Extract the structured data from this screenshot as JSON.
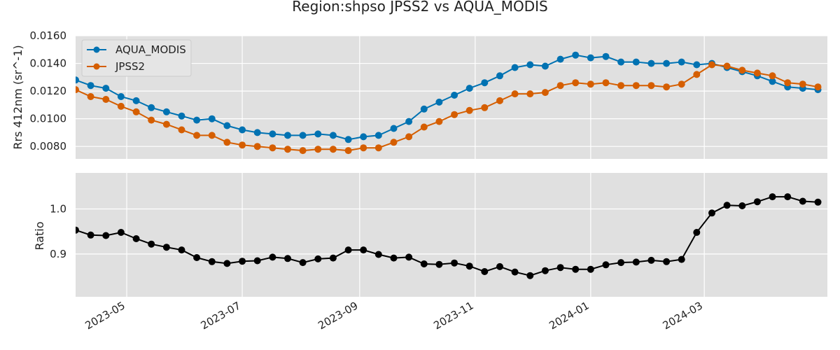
{
  "chart_data": [
    {
      "type": "line",
      "title": "Region:shpso JPSS2 vs AQUA_MODIS",
      "ylabel": "Rrs 412nm (sr^-1)",
      "xlabel": "",
      "xlim": [
        "2023-04-04",
        "2024-05-05"
      ],
      "ylim": [
        0.0071,
        0.016
      ],
      "y_ticks": [
        0.008,
        0.01,
        0.012,
        0.014,
        0.016
      ],
      "y_tick_labels": [
        "0.0080",
        "0.0100",
        "0.0120",
        "0.0140",
        "0.0160"
      ],
      "x": [
        "2023-04-04",
        "2023-04-12",
        "2023-04-20",
        "2023-04-28",
        "2023-05-06",
        "2023-05-14",
        "2023-05-22",
        "2023-05-30",
        "2023-06-07",
        "2023-06-15",
        "2023-06-23",
        "2023-07-01",
        "2023-07-09",
        "2023-07-17",
        "2023-07-25",
        "2023-08-02",
        "2023-08-10",
        "2023-08-18",
        "2023-08-26",
        "2023-09-03",
        "2023-09-11",
        "2023-09-19",
        "2023-09-27",
        "2023-10-05",
        "2023-10-13",
        "2023-10-21",
        "2023-10-29",
        "2023-11-06",
        "2023-11-14",
        "2023-11-22",
        "2023-11-30",
        "2023-12-08",
        "2023-12-16",
        "2023-12-24",
        "2024-01-01",
        "2024-01-09",
        "2024-01-17",
        "2024-01-25",
        "2024-02-02",
        "2024-02-10",
        "2024-02-18",
        "2024-02-26",
        "2024-03-05",
        "2024-03-13",
        "2024-03-21",
        "2024-03-29",
        "2024-04-06",
        "2024-04-14",
        "2024-04-22",
        "2024-04-30"
      ],
      "series": [
        {
          "name": "AQUA_MODIS",
          "color": "#0072b2",
          "values": [
            0.0128,
            0.0124,
            0.0122,
            0.0116,
            0.0113,
            0.0108,
            0.0105,
            0.0102,
            0.0099,
            0.01,
            0.0095,
            0.0092,
            0.009,
            0.0089,
            0.0088,
            0.0088,
            0.0089,
            0.0088,
            0.0085,
            0.0087,
            0.0088,
            0.0093,
            0.0098,
            0.0107,
            0.0112,
            0.0117,
            0.0122,
            0.0126,
            0.0131,
            0.0137,
            0.0139,
            0.0138,
            0.0143,
            0.0146,
            0.0144,
            0.0145,
            0.0141,
            0.0141,
            0.014,
            0.014,
            0.0141,
            0.0139,
            0.014,
            0.0137,
            0.0134,
            0.0131,
            0.0127,
            0.0123,
            0.0122,
            0.0121
          ]
        },
        {
          "name": "JPSS2",
          "color": "#d55e00",
          "values": [
            0.0121,
            0.0116,
            0.0114,
            0.0109,
            0.0105,
            0.0099,
            0.0096,
            0.0092,
            0.0088,
            0.0088,
            0.0083,
            0.0081,
            0.008,
            0.0079,
            0.0078,
            0.0077,
            0.0078,
            0.0078,
            0.0077,
            0.0079,
            0.0079,
            0.0083,
            0.0087,
            0.0094,
            0.0098,
            0.0103,
            0.0106,
            0.0108,
            0.0113,
            0.0118,
            0.0118,
            0.0119,
            0.0124,
            0.0126,
            0.0125,
            0.0126,
            0.0124,
            0.0124,
            0.0124,
            0.0123,
            0.0125,
            0.0132,
            0.0139,
            0.0138,
            0.0135,
            0.0133,
            0.0131,
            0.0126,
            0.0125,
            0.0123
          ]
        }
      ],
      "legend_position": "top-left",
      "grid": true
    },
    {
      "type": "line",
      "title": "",
      "ylabel": "Ratio",
      "xlabel": "",
      "xlim": [
        "2023-04-04",
        "2024-05-05"
      ],
      "ylim": [
        0.805,
        1.08
      ],
      "y_ticks": [
        0.9,
        1.0
      ],
      "y_tick_labels": [
        "0.9",
        "1.0"
      ],
      "x_ticks": [
        "2023-05-01",
        "2023-07-01",
        "2023-09-01",
        "2023-11-01",
        "2024-01-01",
        "2024-03-01"
      ],
      "x_tick_labels": [
        "2023-05",
        "2023-07",
        "2023-09",
        "2023-11",
        "2024-01",
        "2024-03"
      ],
      "x": [
        "2023-04-04",
        "2023-04-12",
        "2023-04-20",
        "2023-04-28",
        "2023-05-06",
        "2023-05-14",
        "2023-05-22",
        "2023-05-30",
        "2023-06-07",
        "2023-06-15",
        "2023-06-23",
        "2023-07-01",
        "2023-07-09",
        "2023-07-17",
        "2023-07-25",
        "2023-08-02",
        "2023-08-10",
        "2023-08-18",
        "2023-08-26",
        "2023-09-03",
        "2023-09-11",
        "2023-09-19",
        "2023-09-27",
        "2023-10-05",
        "2023-10-13",
        "2023-10-21",
        "2023-10-29",
        "2023-11-06",
        "2023-11-14",
        "2023-11-22",
        "2023-11-30",
        "2023-12-08",
        "2023-12-16",
        "2023-12-24",
        "2024-01-01",
        "2024-01-09",
        "2024-01-17",
        "2024-01-25",
        "2024-02-02",
        "2024-02-10",
        "2024-02-18",
        "2024-02-26",
        "2024-03-05",
        "2024-03-13",
        "2024-03-21",
        "2024-03-29",
        "2024-04-06",
        "2024-04-14",
        "2024-04-22",
        "2024-04-30"
      ],
      "series": [
        {
          "color": "#000000",
          "values": [
            0.953,
            0.942,
            0.941,
            0.948,
            0.934,
            0.922,
            0.915,
            0.909,
            0.892,
            0.883,
            0.879,
            0.884,
            0.885,
            0.893,
            0.89,
            0.881,
            0.889,
            0.891,
            0.909,
            0.909,
            0.899,
            0.891,
            0.893,
            0.878,
            0.877,
            0.88,
            0.873,
            0.861,
            0.872,
            0.86,
            0.852,
            0.863,
            0.87,
            0.866,
            0.866,
            0.876,
            0.881,
            0.882,
            0.886,
            0.883,
            0.888,
            0.948,
            0.991,
            1.008,
            1.007,
            1.016,
            1.027,
            1.027,
            1.017,
            1.015
          ]
        }
      ],
      "grid": true
    }
  ]
}
